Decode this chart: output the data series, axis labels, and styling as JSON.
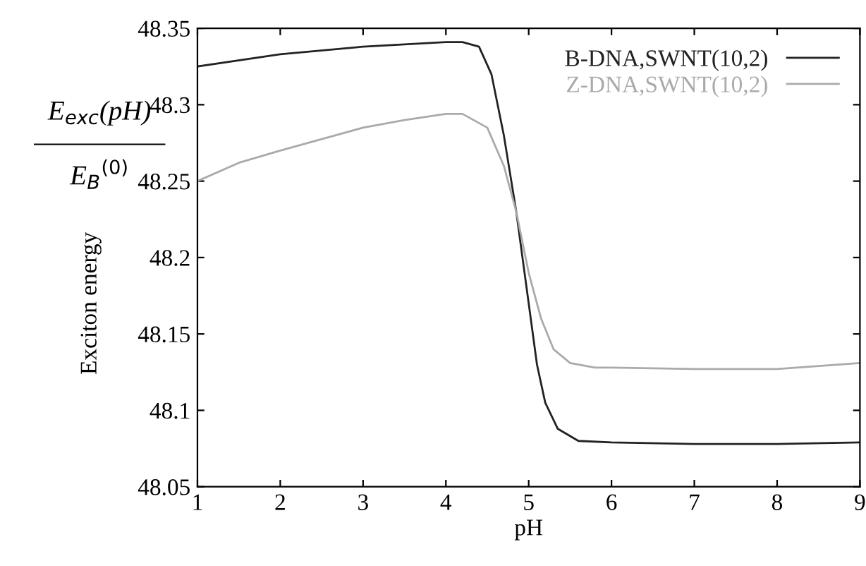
{
  "chart_data": {
    "type": "line",
    "xlabel": "pH",
    "ylabel": "Exciton energy",
    "annotations": [
      "E$_{exc}$(pH)",
      "E$_{B}$$^{(0)}$"
    ],
    "xlim": [
      1,
      9
    ],
    "xticks": [
      1,
      2,
      3,
      4,
      5,
      6,
      7,
      8,
      9
    ],
    "ylim": [
      48.05,
      48.35
    ],
    "yticks": [
      48.05,
      48.1,
      48.15,
      48.2,
      48.25,
      48.3,
      48.35
    ],
    "grid": false,
    "legend": "top right",
    "line_style": "solid",
    "marker": "none",
    "series": [
      {
        "name": "B-DNA,SWNT(10,2)",
        "color": "#222222",
        "x": [
          1,
          2,
          3,
          4,
          4.2,
          4.4,
          4.55,
          4.7,
          4.85,
          5.0,
          5.1,
          5.2,
          5.35,
          5.6,
          6,
          7,
          8,
          9
        ],
        "values": [
          48.325,
          48.333,
          48.338,
          48.341,
          48.341,
          48.338,
          48.32,
          48.28,
          48.23,
          48.17,
          48.13,
          48.105,
          48.088,
          48.08,
          48.079,
          48.078,
          48.078,
          48.079
        ]
      },
      {
        "name": "Z-DNA,SWNT(10,2)",
        "color": "#aaaaaa",
        "x": [
          1,
          1.5,
          2,
          3,
          3.5,
          4,
          4.2,
          4.5,
          4.7,
          4.85,
          5.0,
          5.15,
          5.3,
          5.5,
          5.8,
          6,
          7,
          8,
          9
        ],
        "values": [
          48.25,
          48.262,
          48.27,
          48.285,
          48.29,
          48.294,
          48.294,
          48.285,
          48.26,
          48.23,
          48.19,
          48.16,
          48.14,
          48.131,
          48.128,
          48.128,
          48.127,
          48.127,
          48.131
        ]
      }
    ]
  }
}
